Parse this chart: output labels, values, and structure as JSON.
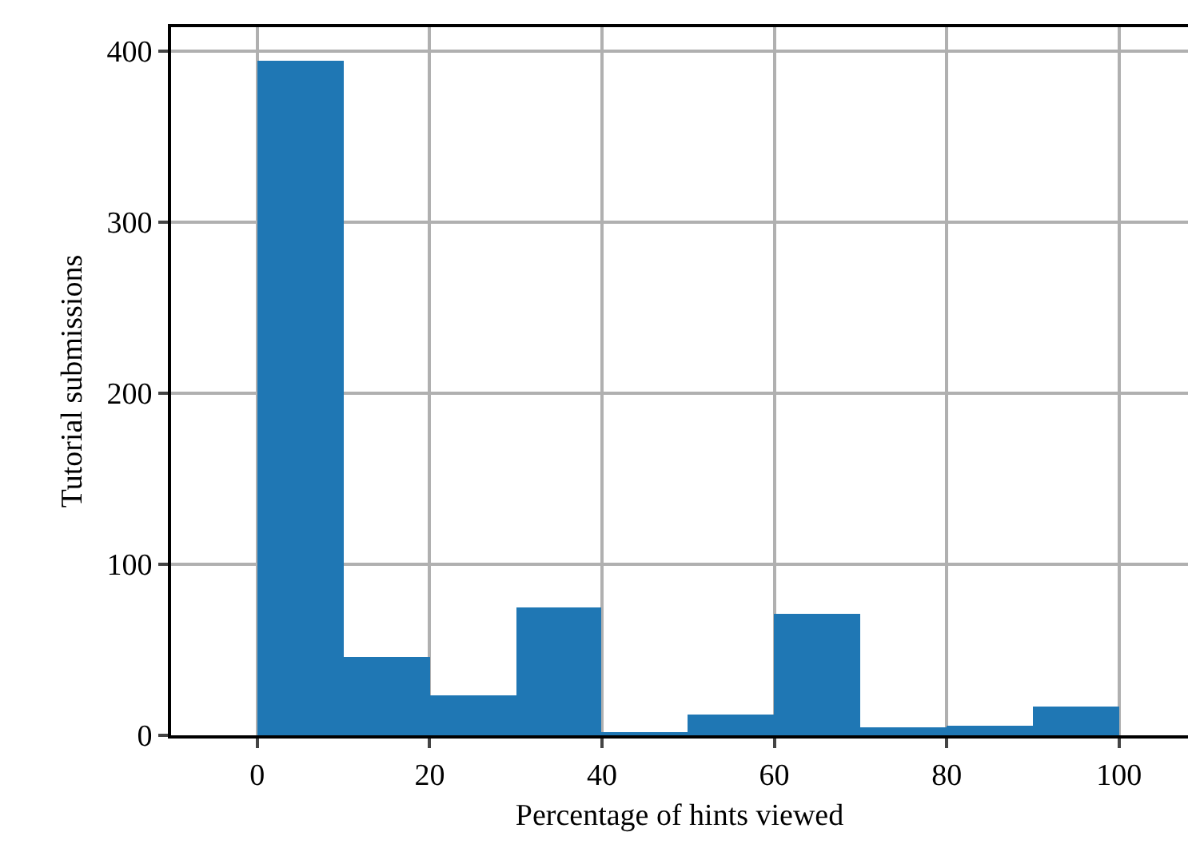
{
  "chart_data": {
    "type": "histogram",
    "xlabel": "Percentage of hints viewed",
    "ylabel": "Tutorial submissions",
    "bins": [
      0,
      10,
      20,
      30,
      40,
      50,
      60,
      70,
      80,
      90,
      100
    ],
    "values": [
      394,
      46,
      23,
      75,
      1,
      12,
      71,
      5,
      6,
      17
    ],
    "color": "#1f77b4",
    "xlim": [
      -10,
      108
    ],
    "xticks": [
      0,
      20,
      40,
      60,
      80,
      100
    ],
    "ylim": [
      0,
      414
    ],
    "yticks": [
      0,
      100,
      200,
      300,
      400
    ],
    "grid": true
  }
}
